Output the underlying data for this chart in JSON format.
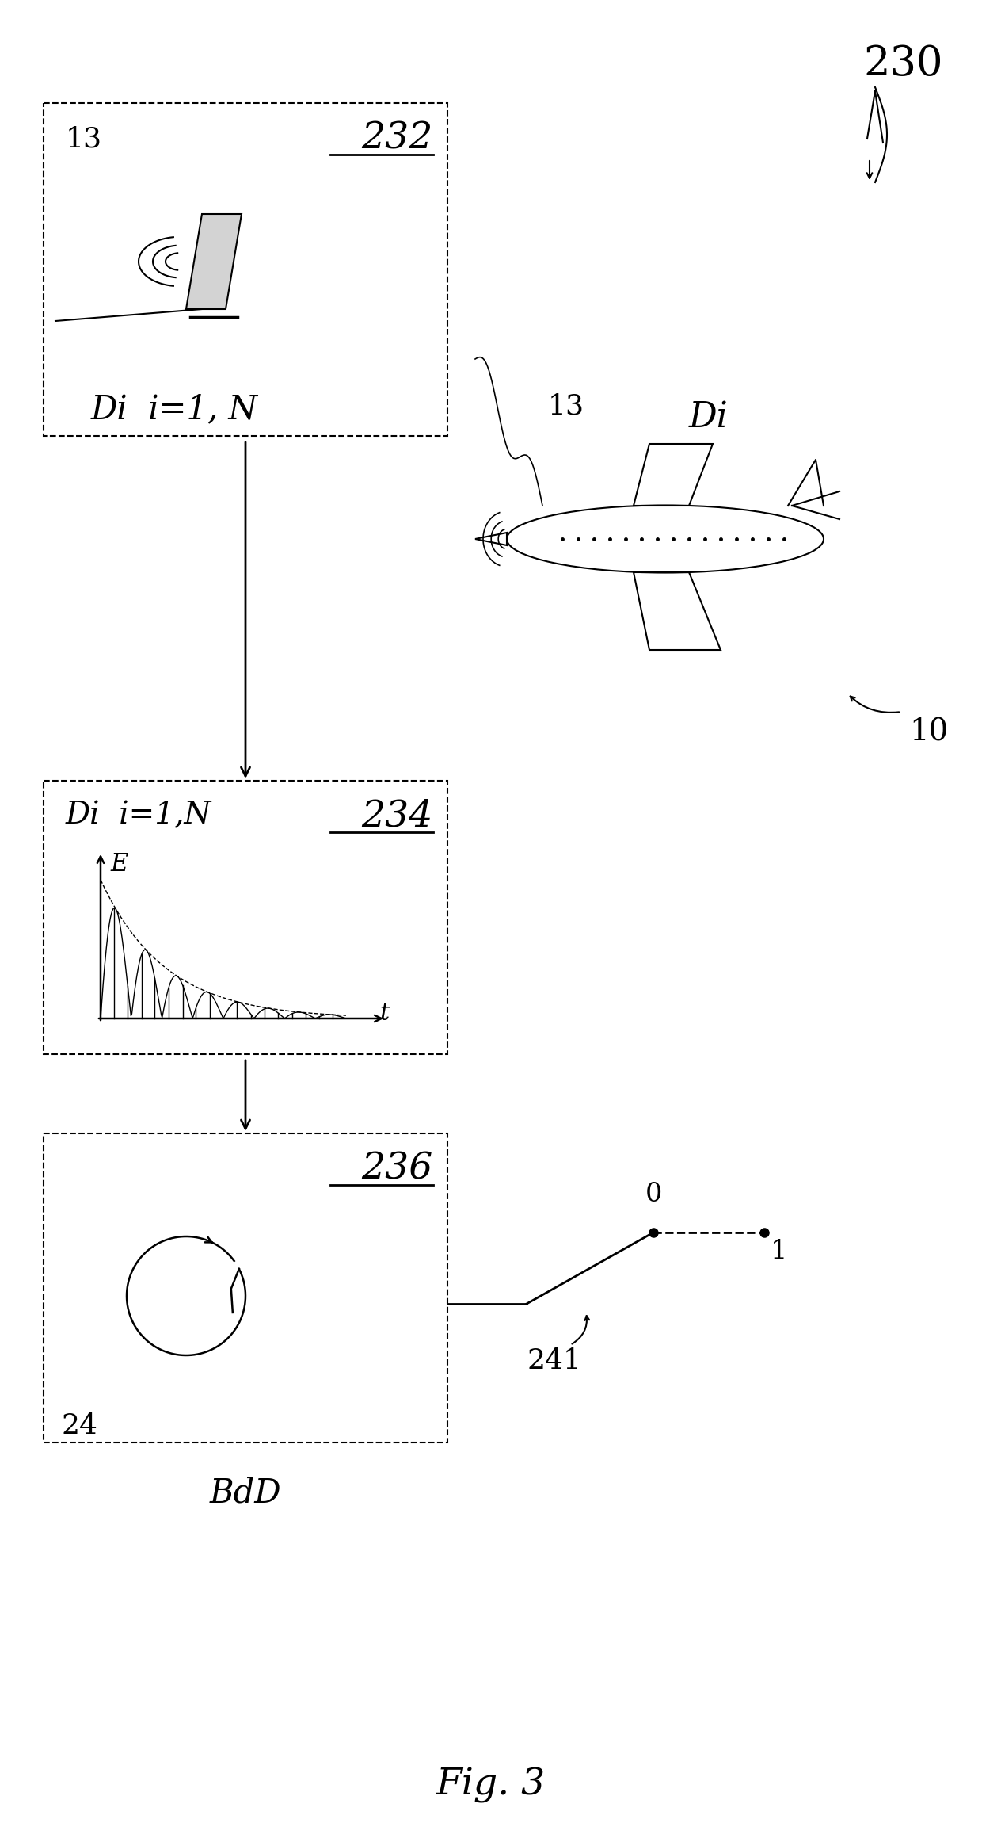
{
  "bg_color": "#ffffff",
  "fig_label": "Fig. 3",
  "ref_230": "230",
  "ref_10": "10",
  "ref_13_top": "13",
  "ref_13_plane": "13",
  "ref_24": "24",
  "ref_241": "241",
  "box1_label": "232",
  "box1_text1": "Di  i=1, N",
  "box2_label": "234",
  "box2_text1": "Di  i=1,N",
  "box2_xlabel": "t",
  "box2_ylabel": "E",
  "box3_label": "236",
  "box3_text_below": "BdD",
  "Di_label": "Di"
}
